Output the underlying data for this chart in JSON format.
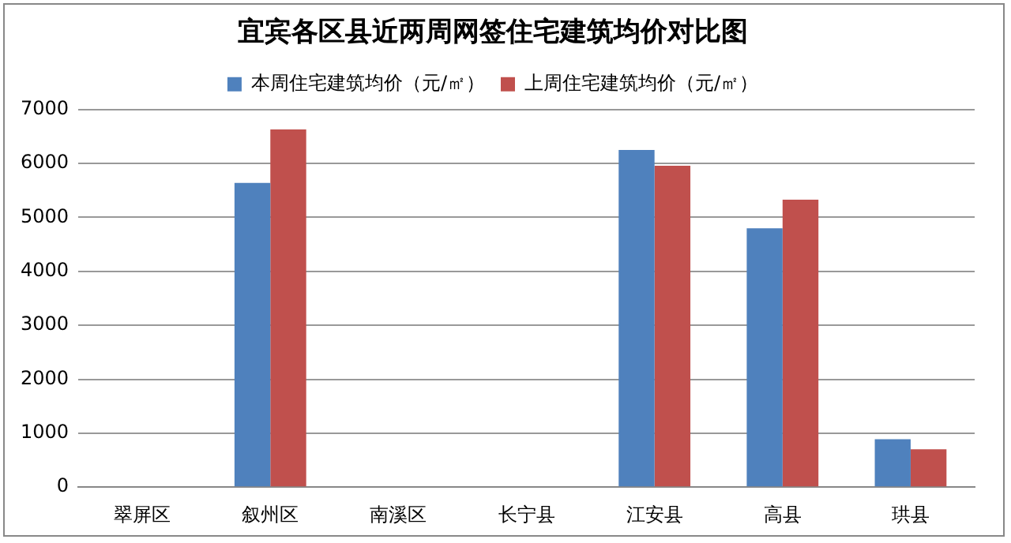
{
  "chart_data": {
    "type": "bar",
    "title": "宜宾各区县近两周网签住宅建筑均价对比图",
    "categories": [
      "翠屏区",
      "叙州区",
      "南溪区",
      "长宁县",
      "江安县",
      "高县",
      "珙县"
    ],
    "series": [
      {
        "name": "本周住宅建筑均价（元/㎡）",
        "color": "#4f81bd",
        "values": [
          null,
          5640,
          null,
          null,
          6250,
          4800,
          890
        ]
      },
      {
        "name": "上周住宅建筑均价（元/㎡）",
        "color": "#c0504d",
        "values": [
          null,
          6630,
          null,
          null,
          5960,
          5330,
          700
        ]
      }
    ],
    "ylim": [
      0,
      7000
    ],
    "yticks": [
      0,
      1000,
      2000,
      3000,
      4000,
      5000,
      6000,
      7000
    ],
    "grid": "y",
    "legend": "top"
  }
}
